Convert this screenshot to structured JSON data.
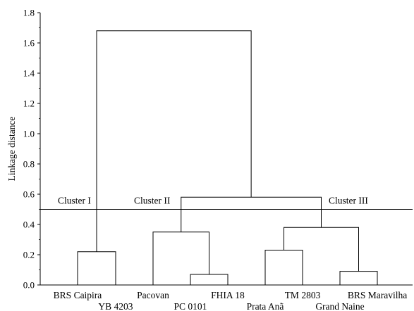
{
  "chart_data": {
    "type": "dendrogram",
    "ylabel": "Linkage distance",
    "ylim": [
      0,
      1.8
    ],
    "yticks": [
      "0.0",
      "0.2",
      "0.4",
      "0.6",
      "0.8",
      "1.0",
      "1.2",
      "1.4",
      "1.6",
      "1.8"
    ],
    "leaves": [
      "BRS Caipira",
      "YB 4203",
      "Pacovan",
      "PC 0101",
      "FHIA 18",
      "Prata Anã",
      "TM 2803",
      "Grand Naine",
      "BRS Maravilha"
    ],
    "merges": [
      {
        "members": [
          "BRS Caipira",
          "YB 4203"
        ],
        "distance": 0.22
      },
      {
        "members": [
          "PC 0101",
          "FHIA 18"
        ],
        "distance": 0.07
      },
      {
        "members": [
          "Pacovan",
          "PC 0101",
          "FHIA 18"
        ],
        "distance": 0.35
      },
      {
        "members": [
          "Prata Anã",
          "TM 2803"
        ],
        "distance": 0.23
      },
      {
        "members": [
          "Grand Naine",
          "BRS Maravilha"
        ],
        "distance": 0.09
      },
      {
        "members": [
          "Prata Anã",
          "TM 2803",
          "Grand Naine",
          "BRS Maravilha"
        ],
        "distance": 0.38
      },
      {
        "members": [
          "Pacovan",
          "PC 0101",
          "FHIA 18",
          "Prata Anã",
          "TM 2803",
          "Grand Naine",
          "BRS Maravilha"
        ],
        "distance": 0.58
      },
      {
        "members": [
          "all"
        ],
        "distance": 1.68
      }
    ],
    "cut_line": 0.5,
    "clusters": [
      "Cluster I",
      "Cluster II",
      "Cluster III"
    ],
    "grid": false
  }
}
